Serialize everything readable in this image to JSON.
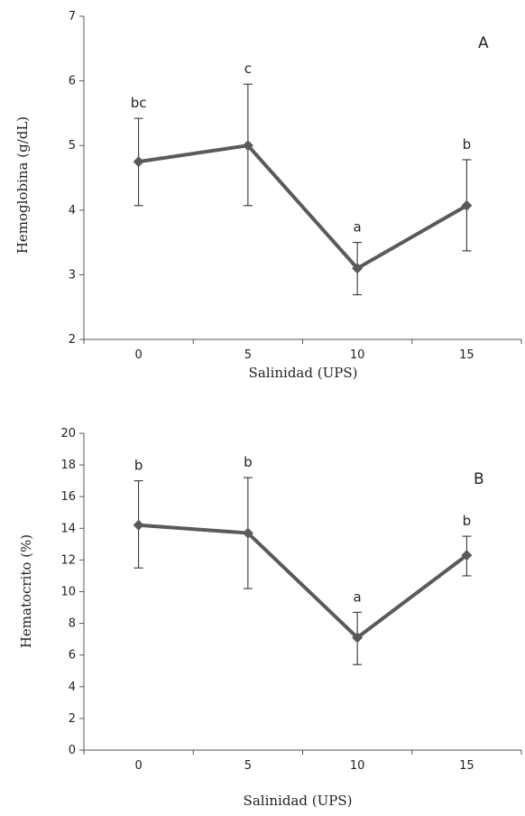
{
  "chart_data": [
    {
      "type": "line",
      "panel_label": "A",
      "xlabel": "Salinidad (UPS)",
      "ylabel": "Hemoglobina (g/dL)",
      "categories": [
        "0",
        "5",
        "10",
        "15"
      ],
      "ylim": [
        2,
        7
      ],
      "yticks": [
        2,
        3,
        4,
        5,
        6,
        7
      ],
      "series": [
        {
          "values": [
            4.75,
            5.0,
            3.1,
            4.07
          ],
          "error_low": [
            4.07,
            4.07,
            2.69,
            3.37
          ],
          "error_high": [
            5.42,
            5.95,
            3.5,
            4.78
          ],
          "labels": [
            "bc",
            "c",
            "a",
            "b"
          ],
          "color": "#5a5a5a"
        }
      ],
      "grid": false
    },
    {
      "type": "line",
      "panel_label": "B",
      "xlabel": "Salinidad  (UPS)",
      "ylabel": "Hematocrito (%)",
      "categories": [
        "0",
        "5",
        "10",
        "15"
      ],
      "ylim": [
        0,
        20
      ],
      "yticks": [
        0,
        2,
        4,
        6,
        8,
        10,
        12,
        14,
        16,
        18,
        20
      ],
      "series": [
        {
          "values": [
            14.2,
            13.7,
            7.1,
            12.3
          ],
          "error_low": [
            11.5,
            10.2,
            5.4,
            11.0
          ],
          "error_high": [
            17.0,
            17.2,
            8.7,
            13.5
          ],
          "labels": [
            "b",
            "b",
            "a",
            "b"
          ],
          "color": "#5a5a5a"
        }
      ],
      "grid": false
    }
  ]
}
